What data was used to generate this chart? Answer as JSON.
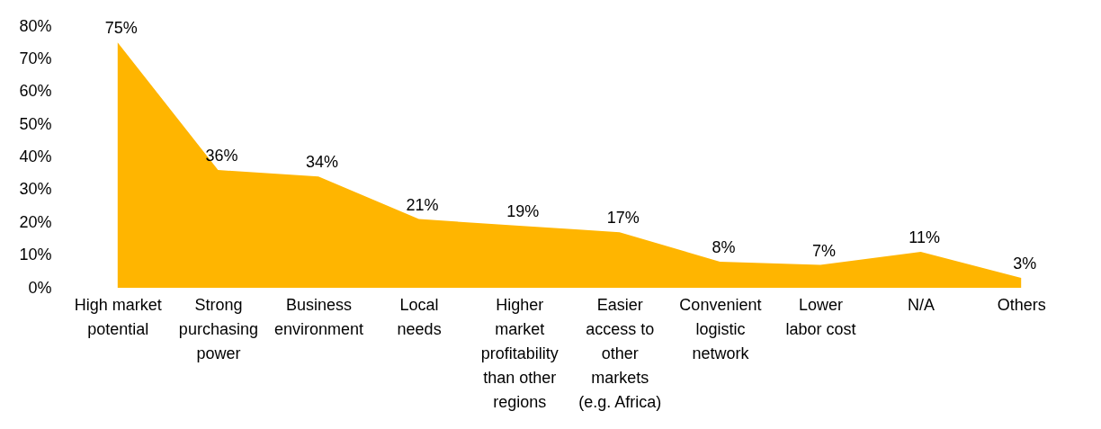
{
  "chart_data": {
    "type": "area",
    "categories": [
      "High market\npotential",
      "Strong\npurchasing\npower",
      "Business\nenvironment",
      "Local\nneeds",
      "Higher\nmarket\nprofitability\nthan other\nregions",
      "Easier\naccess to\nother\nmarkets\n(e.g. Africa)",
      "Convenient\nlogistic\nnetwork",
      "Lower\nlabor cost",
      "N/A",
      "Others"
    ],
    "series": [
      {
        "color": "#ffb500",
        "values": [
          75,
          36,
          34,
          21,
          19,
          17,
          8,
          7,
          11,
          3
        ],
        "value_labels": [
          "75%",
          "36%",
          "34%",
          "21%",
          "19%",
          "17%",
          "8%",
          "7%",
          "11%",
          "3%"
        ]
      }
    ],
    "ylim": [
      0,
      80
    ],
    "yticks": [
      {
        "value": 0,
        "label": "0%"
      },
      {
        "value": 10,
        "label": "10%"
      },
      {
        "value": 20,
        "label": "20%"
      },
      {
        "value": 30,
        "label": "30%"
      },
      {
        "value": 40,
        "label": "40%"
      },
      {
        "value": 50,
        "label": "50%"
      },
      {
        "value": 60,
        "label": "60%"
      },
      {
        "value": 70,
        "label": "70%"
      },
      {
        "value": 80,
        "label": "80%"
      }
    ],
    "grid": false
  }
}
